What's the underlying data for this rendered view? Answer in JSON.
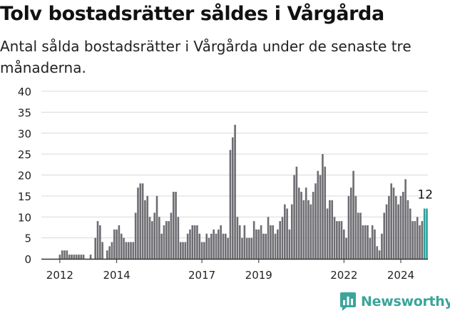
{
  "chart_data": {
    "type": "bar",
    "title": "Tolv bostadsrätter såldes i Vårgårda",
    "subtitle": "Antal sålda bostadsrätter i Vårgårda under de senaste tre månaderna.",
    "xlabel": "",
    "ylabel": "",
    "ylim": [
      0,
      40
    ],
    "yticks": [
      "0",
      "5",
      "10",
      "15",
      "20",
      "25",
      "30",
      "35",
      "40"
    ],
    "xticks": [
      "2012",
      "2014",
      "2017",
      "2019",
      "2022",
      "2024"
    ],
    "grid": true,
    "start_month": "2012-01",
    "values": [
      1,
      2,
      2,
      2,
      1,
      1,
      1,
      1,
      1,
      1,
      1,
      0,
      0,
      1,
      0,
      5,
      9,
      8,
      4,
      0,
      2,
      3,
      4,
      7,
      7,
      8,
      6,
      5,
      4,
      4,
      4,
      4,
      11,
      17,
      18,
      18,
      14,
      15,
      10,
      9,
      11,
      15,
      10,
      6,
      8,
      9,
      9,
      11,
      16,
      16,
      10,
      4,
      4,
      4,
      6,
      7,
      8,
      8,
      8,
      6,
      4,
      4,
      6,
      5,
      6,
      7,
      6,
      7,
      8,
      6,
      6,
      5,
      26,
      29,
      32,
      10,
      8,
      5,
      8,
      5,
      5,
      5,
      9,
      7,
      7,
      8,
      6,
      6,
      10,
      8,
      8,
      6,
      7,
      9,
      10,
      13,
      12,
      7,
      13,
      20,
      22,
      17,
      16,
      14,
      17,
      14,
      13,
      16,
      18,
      21,
      20,
      25,
      22,
      12,
      14,
      14,
      10,
      9,
      9,
      9,
      7,
      5,
      15,
      17,
      21,
      15,
      11,
      11,
      8,
      8,
      8,
      5,
      8,
      7,
      3,
      2,
      6,
      11,
      13,
      15,
      18,
      17,
      15,
      13,
      15,
      16,
      19,
      14,
      12,
      9,
      9,
      10,
      8,
      9,
      12,
      12
    ],
    "highlight_last": 2,
    "bar_color": "#6d6d72",
    "highlight_color": "#2aa198",
    "annotation": "12"
  },
  "brand": {
    "name": "Newsworthy"
  }
}
